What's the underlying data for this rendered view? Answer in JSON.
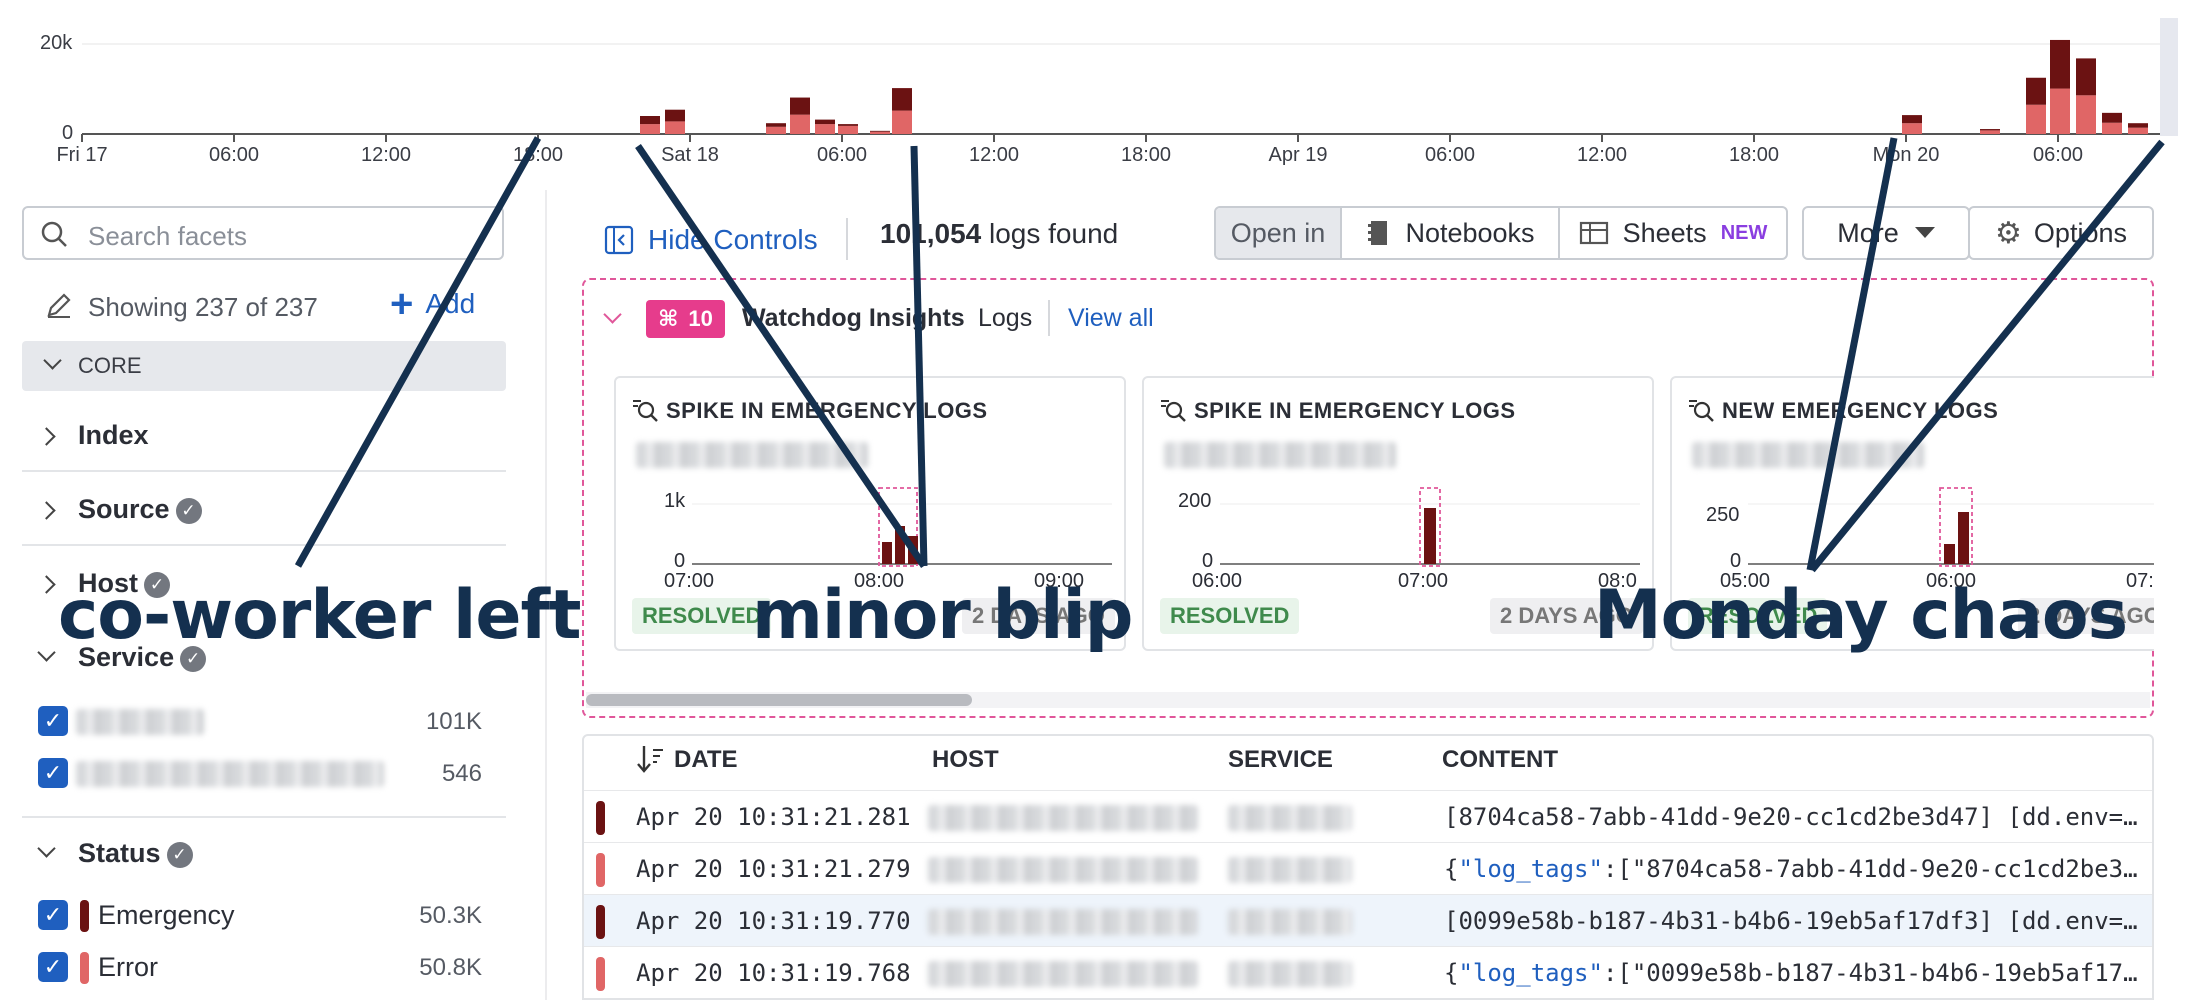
{
  "timeline": {
    "y_labels": [
      "20k",
      "0"
    ],
    "x_labels": [
      "Fri 17",
      "06:00",
      "12:00",
      "18:00",
      "Sat 18",
      "06:00",
      "12:00",
      "18:00",
      "Apr 19",
      "06:00",
      "12:00",
      "18:00",
      "Mon 20",
      "06:00"
    ],
    "colors": {
      "emergency": "#6b1212",
      "error": "#e06666"
    }
  },
  "chart_data": {
    "type": "bar",
    "title": "",
    "ylabel": "",
    "xlabel": "",
    "ylim": [
      0,
      20000
    ],
    "stacked": true,
    "x_ticks": [
      "Fri 17",
      "06:00",
      "12:00",
      "18:00",
      "Sat 18",
      "06:00",
      "12:00",
      "18:00",
      "Apr 19",
      "06:00",
      "12:00",
      "18:00",
      "Mon 20",
      "06:00"
    ],
    "bars": [
      {
        "time": "Sat 18 ~02:00",
        "series_values": [
          1800,
          2200
        ]
      },
      {
        "time": "Sat 18 ~03:00",
        "series_values": [
          2600,
          2800
        ]
      },
      {
        "time": "Sat 18 ~05:00",
        "series_values": [
          800,
          1600
        ]
      },
      {
        "time": "Sat 18 ~06:00",
        "series_values": [
          3800,
          4300
        ]
      },
      {
        "time": "Sat 18 ~07:00",
        "series_values": [
          1000,
          2200
        ]
      },
      {
        "time": "Sat 18 ~08:00",
        "series_values": [
          400,
          1800
        ]
      },
      {
        "time": "Sat 18 ~09:00",
        "series_values": [
          200,
          500
        ]
      },
      {
        "time": "Sat 18 ~10:00",
        "series_values": [
          5000,
          5200
        ]
      },
      {
        "time": "Mon 20 ~00:00",
        "series_values": [
          1800,
          2400
        ]
      },
      {
        "time": "Mon 20 ~03:00",
        "series_values": [
          300,
          800
        ]
      },
      {
        "time": "Mon 20 ~05:00",
        "series_values": [
          6000,
          6500
        ]
      },
      {
        "time": "Mon 20 ~06:00",
        "series_values": [
          10800,
          10100
        ]
      },
      {
        "time": "Mon 20 ~07:00",
        "series_values": [
          8200,
          8600
        ]
      },
      {
        "time": "Mon 20 ~08:00",
        "series_values": [
          2200,
          2500
        ]
      },
      {
        "time": "Mon 20 ~09:00",
        "series_values": [
          1000,
          1400
        ]
      }
    ],
    "series": [
      {
        "name": "Emergency"
      },
      {
        "name": "Error"
      }
    ]
  },
  "facets": {
    "search_placeholder": "Search facets",
    "showing": "Showing 237 of 237",
    "add_label": "Add",
    "group_label": "CORE",
    "items": [
      "Index",
      "Source",
      "Host",
      "Service",
      "Status"
    ],
    "service_counts": [
      "101K",
      "546"
    ],
    "status_values": [
      {
        "label": "Emergency",
        "count": "50.3K",
        "color": "#6b1212"
      },
      {
        "label": "Error",
        "count": "50.8K",
        "color": "#e06666"
      }
    ]
  },
  "toolbar": {
    "hide_controls": "Hide Controls",
    "logs_count": "101,054",
    "logs_found": "logs found",
    "open_in": "Open in",
    "notebooks": "Notebooks",
    "sheets": "Sheets",
    "new_badge": "NEW",
    "more": "More",
    "options": "Options"
  },
  "watchdog": {
    "count": "10",
    "title": "Watchdog Insights",
    "scope": "Logs",
    "view_all": "View all",
    "cards": [
      {
        "title": "SPIKE IN EMERGENCY LOGS",
        "y_labels": [
          "1k",
          "0"
        ],
        "x_labels": [
          "07:00",
          "08:00",
          "09:00"
        ],
        "status": "RESOLVED",
        "ago": "2 DAYS AGO"
      },
      {
        "title": "SPIKE IN EMERGENCY LOGS",
        "y_labels": [
          "200",
          "0"
        ],
        "x_labels": [
          "06:00",
          "07:00",
          "08:0"
        ],
        "status": "RESOLVED",
        "ago": "2 DAYS AGO"
      },
      {
        "title": "NEW EMERGENCY LOGS",
        "y_labels": [
          "250",
          "0"
        ],
        "x_labels": [
          "05:00",
          "06:00",
          "07:0"
        ],
        "status": "RESOLVED",
        "ago": "2 DAYS AGO"
      }
    ]
  },
  "table": {
    "headers": [
      "DATE",
      "HOST",
      "SERVICE",
      "CONTENT"
    ],
    "rows": [
      {
        "date": "Apr 20 10:31:21.281",
        "level": "emergency",
        "content": "[8704ca58-7abb-41dd-9e20-cc1cd2be3d47] [dd.env=e…",
        "json_key": ""
      },
      {
        "date": "Apr 20 10:31:21.279",
        "level": "error",
        "json_key": "\"log_tags\"",
        "content": ":[\"8704ca58-7abb-41dd-9e20-cc1cd2be3d…"
      },
      {
        "date": "Apr 20 10:31:19.770",
        "level": "emergency",
        "content": "[0099e58b-b187-4b31-b4b6-19eb5af17df3] [dd.env=e…",
        "json_key": ""
      },
      {
        "date": "Apr 20 10:31:19.768",
        "level": "error",
        "json_key": "\"log_tags\"",
        "content": ":[\"0099e58b-b187-4b31-b4b6-19eb5af17d…"
      }
    ]
  },
  "annotations": {
    "left": "co-worker left",
    "middle": "minor blip",
    "right": "Monday chaos"
  }
}
